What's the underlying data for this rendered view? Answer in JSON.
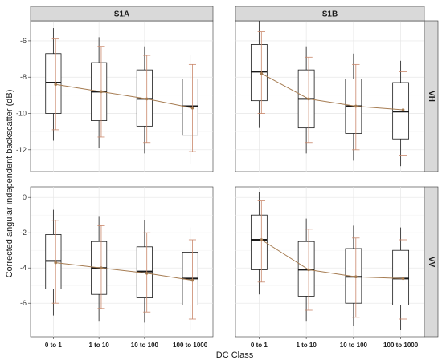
{
  "chart_data": {
    "type": "box",
    "xlabel": "DC Class",
    "ylabel": "Corrected angular independent backscatter (dB)",
    "categories": [
      "0 to 1",
      "1 to 10",
      "10 to 100",
      "100 to 1000"
    ],
    "columns": [
      "S1A",
      "S1B"
    ],
    "rows": [
      "VH",
      "VV"
    ],
    "accent_color": "#a67c52",
    "errorbar_color": "#c9876a",
    "grid": true,
    "facets": [
      {
        "column": "S1A",
        "row": "VH",
        "ylim": [
          -13.2,
          -4.9
        ],
        "yticks": [
          -12,
          -10,
          -8,
          -6
        ],
        "boxes": [
          {
            "whisker_low": -11.5,
            "q1": -10.0,
            "median": -8.3,
            "q3": -6.7,
            "whisker_high": -5.3
          },
          {
            "whisker_low": -11.9,
            "q1": -10.4,
            "median": -8.8,
            "q3": -7.2,
            "whisker_high": -5.8
          },
          {
            "whisker_low": -12.2,
            "q1": -10.7,
            "median": -9.2,
            "q3": -7.6,
            "whisker_high": -6.3
          },
          {
            "whisker_low": -12.8,
            "q1": -11.2,
            "median": -9.6,
            "q3": -8.1,
            "whisker_high": -6.8
          }
        ],
        "mean": [
          -8.4,
          -8.8,
          -9.2,
          -9.7
        ],
        "sd_low": [
          -10.9,
          -11.3,
          -11.6,
          -12.1
        ],
        "sd_high": [
          -5.9,
          -6.3,
          -6.8,
          -7.3
        ]
      },
      {
        "column": "S1B",
        "row": "VH",
        "ylim": [
          -13.2,
          -4.9
        ],
        "yticks": [
          -12,
          -10,
          -8,
          -6
        ],
        "boxes": [
          {
            "whisker_low": -10.8,
            "q1": -9.3,
            "median": -7.7,
            "q3": -6.2,
            "whisker_high": -4.9
          },
          {
            "whisker_low": -12.2,
            "q1": -10.8,
            "median": -9.2,
            "q3": -7.6,
            "whisker_high": -6.3
          },
          {
            "whisker_low": -12.6,
            "q1": -11.1,
            "median": -9.6,
            "q3": -8.1,
            "whisker_high": -6.7
          },
          {
            "whisker_low": -12.9,
            "q1": -11.4,
            "median": -9.9,
            "q3": -8.3,
            "whisker_high": -7.1
          }
        ],
        "mean": [
          -7.8,
          -9.2,
          -9.6,
          -9.8
        ],
        "sd_low": [
          -10.0,
          -11.6,
          -12.0,
          -12.3
        ],
        "sd_high": [
          -5.5,
          -6.9,
          -7.3,
          -7.7
        ]
      },
      {
        "column": "S1A",
        "row": "VV",
        "ylim": [
          -7.9,
          0.6
        ],
        "yticks": [
          -6,
          -4,
          -2,
          0
        ],
        "boxes": [
          {
            "whisker_low": -6.7,
            "q1": -5.2,
            "median": -3.6,
            "q3": -2.1,
            "whisker_high": -0.7
          },
          {
            "whisker_low": -7.0,
            "q1": -5.5,
            "median": -4.0,
            "q3": -2.5,
            "whisker_high": -1.1
          },
          {
            "whisker_low": -7.1,
            "q1": -5.7,
            "median": -4.2,
            "q3": -2.8,
            "whisker_high": -1.3
          },
          {
            "whisker_low": -7.5,
            "q1": -6.1,
            "median": -4.6,
            "q3": -3.1,
            "whisker_high": -1.7
          }
        ],
        "mean": [
          -3.7,
          -4.0,
          -4.3,
          -4.7
        ],
        "sd_low": [
          -6.0,
          -6.3,
          -6.5,
          -6.9
        ],
        "sd_high": [
          -1.3,
          -1.6,
          -2.0,
          -2.4
        ]
      },
      {
        "column": "S1B",
        "row": "VV",
        "ylim": [
          -7.9,
          0.6
        ],
        "yticks": [
          -6,
          -4,
          -2,
          0
        ],
        "boxes": [
          {
            "whisker_low": -5.5,
            "q1": -4.1,
            "median": -2.4,
            "q3": -1.0,
            "whisker_high": 0.3
          },
          {
            "whisker_low": -7.0,
            "q1": -5.6,
            "median": -4.1,
            "q3": -2.5,
            "whisker_high": -1.2
          },
          {
            "whisker_low": -7.3,
            "q1": -6.0,
            "median": -4.5,
            "q3": -2.9,
            "whisker_high": -1.6
          },
          {
            "whisker_low": -7.5,
            "q1": -6.1,
            "median": -4.6,
            "q3": -3.0,
            "whisker_high": -1.7
          }
        ],
        "mean": [
          -2.4,
          -4.1,
          -4.5,
          -4.6
        ],
        "sd_low": [
          -4.8,
          -6.4,
          -6.8,
          -6.9
        ],
        "sd_high": [
          -0.2,
          -1.8,
          -2.3,
          -2.4
        ]
      }
    ]
  }
}
